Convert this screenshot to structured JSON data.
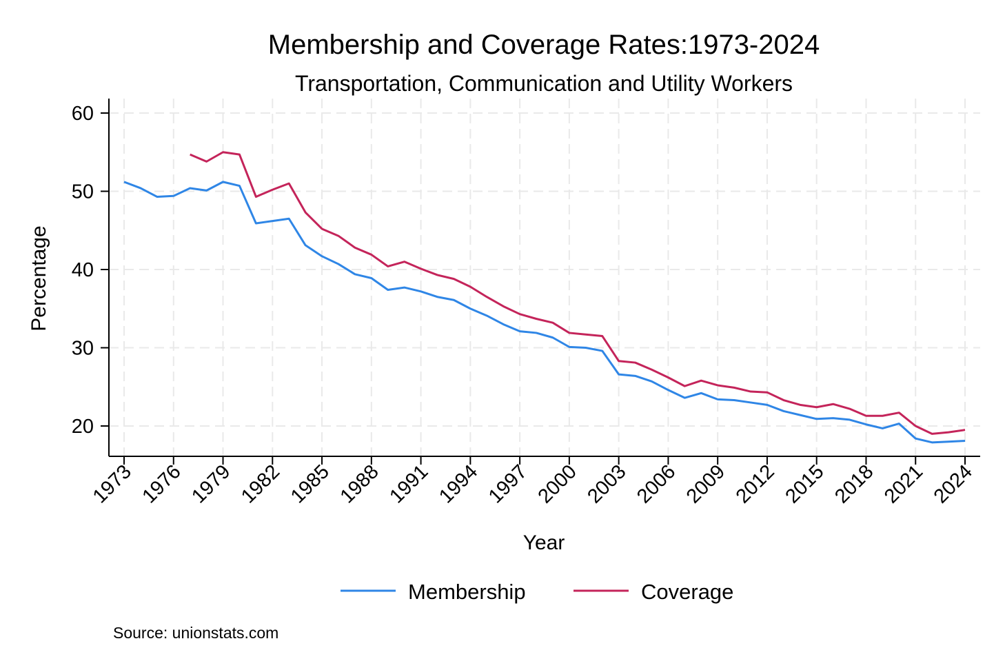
{
  "chart_data": {
    "type": "line",
    "title": "Membership and Coverage Rates:1973-2024",
    "subtitle": "Transportation, Communication and Utility Workers",
    "xlabel": "Year",
    "ylabel": "Percentage",
    "xlim": [
      1973,
      2024
    ],
    "ylim": [
      16,
      61
    ],
    "x_ticks": [
      "1973",
      "1976",
      "1979",
      "1982",
      "1985",
      "1988",
      "1991",
      "1994",
      "1997",
      "2000",
      "2003",
      "2006",
      "2009",
      "2012",
      "2015",
      "2018",
      "2021",
      "2024"
    ],
    "y_ticks": [
      "20",
      "30",
      "40",
      "50",
      "60"
    ],
    "grid": true,
    "legend_position": "bottom",
    "x": [
      1973,
      1974,
      1975,
      1976,
      1977,
      1978,
      1979,
      1980,
      1981,
      1982,
      1983,
      1984,
      1985,
      1986,
      1987,
      1988,
      1989,
      1990,
      1991,
      1992,
      1993,
      1994,
      1995,
      1996,
      1997,
      1998,
      1999,
      2000,
      2001,
      2002,
      2003,
      2004,
      2005,
      2006,
      2007,
      2008,
      2009,
      2010,
      2011,
      2012,
      2013,
      2014,
      2015,
      2016,
      2017,
      2018,
      2019,
      2020,
      2021,
      2022,
      2023,
      2024
    ],
    "series": [
      {
        "name": "Membership",
        "color": "#2f86e6",
        "values": [
          51.2,
          50.4,
          49.3,
          49.4,
          50.4,
          50.1,
          51.2,
          50.7,
          45.9,
          46.2,
          46.5,
          43.1,
          41.7,
          40.7,
          39.4,
          38.9,
          37.4,
          37.7,
          37.2,
          36.5,
          36.1,
          35.0,
          34.1,
          33.0,
          32.1,
          31.9,
          31.3,
          30.1,
          30.0,
          29.6,
          26.6,
          26.4,
          25.7,
          24.6,
          23.6,
          24.2,
          23.4,
          23.3,
          23.0,
          22.7,
          21.9,
          21.4,
          20.9,
          21.0,
          20.8,
          20.2,
          19.7,
          20.3,
          18.4,
          17.9,
          18.0,
          18.1
        ]
      },
      {
        "name": "Coverage",
        "color": "#c4245a",
        "values": [
          null,
          null,
          null,
          null,
          54.7,
          53.8,
          55.0,
          54.7,
          49.3,
          50.2,
          51.0,
          47.3,
          45.2,
          44.3,
          42.8,
          41.9,
          40.4,
          41.0,
          40.1,
          39.3,
          38.8,
          37.8,
          36.5,
          35.3,
          34.3,
          33.7,
          33.2,
          31.9,
          31.7,
          31.5,
          28.3,
          28.1,
          27.2,
          26.2,
          25.1,
          25.8,
          25.2,
          24.9,
          24.4,
          24.3,
          23.3,
          22.7,
          22.4,
          22.8,
          22.2,
          21.3,
          21.3,
          21.7,
          20.0,
          19.0,
          19.2,
          19.5
        ]
      }
    ]
  },
  "source_note": "Source: unionstats.com"
}
